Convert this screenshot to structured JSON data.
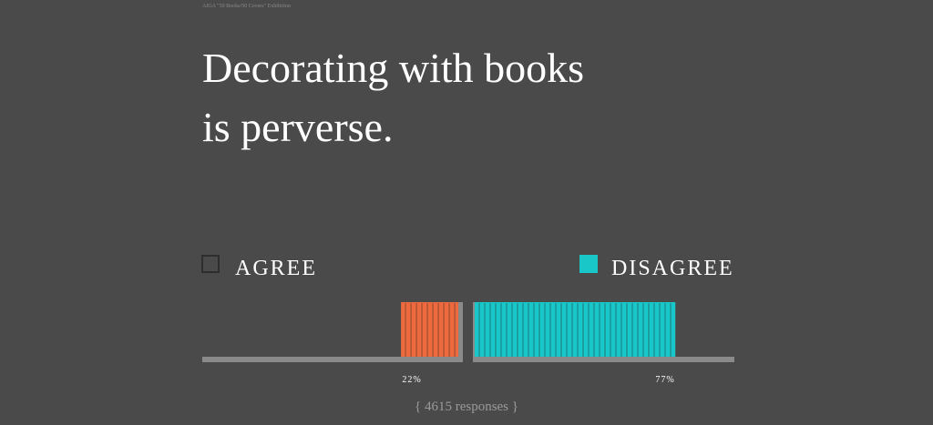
{
  "header": {
    "top_label": "AIGA \"50 Books/50 Covers\" Exhibition",
    "title_lines": [
      "Decorating with books",
      "is perverse."
    ]
  },
  "chart_data": {
    "type": "poll",
    "categories": [
      "AGREE",
      "DISAGREE"
    ],
    "values": [
      22,
      77
    ],
    "value_labels": [
      "22%",
      "77%"
    ],
    "colors": [
      "#ec6a3e",
      "#19c6c8"
    ],
    "checked": [
      false,
      true
    ],
    "xlim": [
      0,
      100
    ]
  },
  "footer": {
    "responses": "{ 4615 responses }"
  }
}
